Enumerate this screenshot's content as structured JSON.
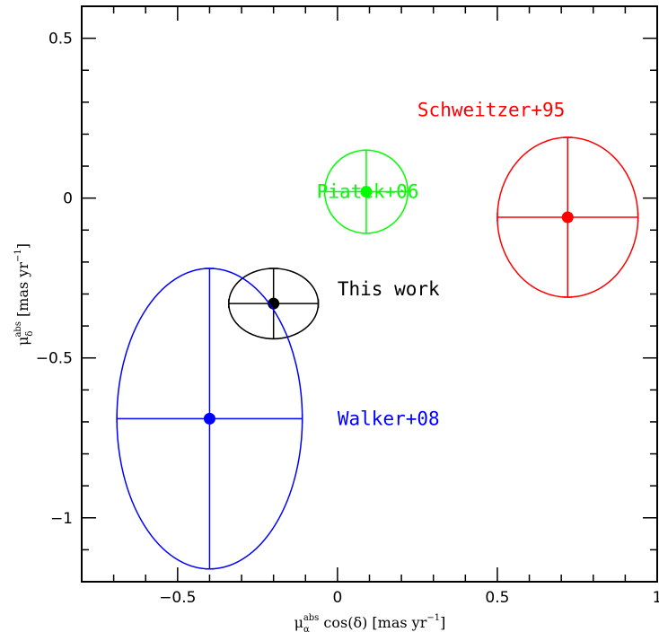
{
  "chart_data": {
    "type": "scatter",
    "xlim": [
      -0.8,
      1.0
    ],
    "ylim": [
      -1.2,
      0.6
    ],
    "x_ticks": [
      -0.5,
      0,
      0.5,
      1
    ],
    "x_tick_labels": [
      "−0.5",
      "0",
      "0.5",
      "1"
    ],
    "y_ticks": [
      -1,
      -0.5,
      0,
      0.5
    ],
    "y_tick_labels": [
      "−1",
      "−0.5",
      "0",
      "0.5"
    ],
    "x_minor_step": 0.1,
    "y_minor_step": 0.1,
    "xlabel": {
      "sym": "μ",
      "sup": "abs",
      "sub": "α",
      "rest": " cos(δ) [mas yr",
      "exp": "−1",
      "end": "]"
    },
    "ylabel": {
      "sym": "μ",
      "sup": "abs",
      "sub": "δ",
      "rest": " [mas yr",
      "exp": "−1",
      "end": "]"
    },
    "grid": false,
    "legend": "none",
    "series": [
      {
        "name": "This work",
        "x": -0.2,
        "y": -0.33,
        "ex": 0.14,
        "ey": 0.11,
        "color": "#000000",
        "label_x": 0.0,
        "label_y": -0.285
      },
      {
        "name": "Piatek+06",
        "x": 0.09,
        "y": 0.02,
        "ex": 0.13,
        "ey": 0.13,
        "color": "#00ff00",
        "label_x": -0.065,
        "label_y": 0.02
      },
      {
        "name": "Schweitzer+95",
        "x": 0.72,
        "y": -0.06,
        "ex": 0.22,
        "ey": 0.25,
        "color": "#ff0000",
        "label_x": 0.25,
        "label_y": 0.275
      },
      {
        "name": "Walker+08",
        "x": -0.4,
        "y": -0.69,
        "ex": 0.29,
        "ey": 0.47,
        "color": "#0000ff",
        "label_x": 0.0,
        "label_y": -0.69
      }
    ]
  }
}
